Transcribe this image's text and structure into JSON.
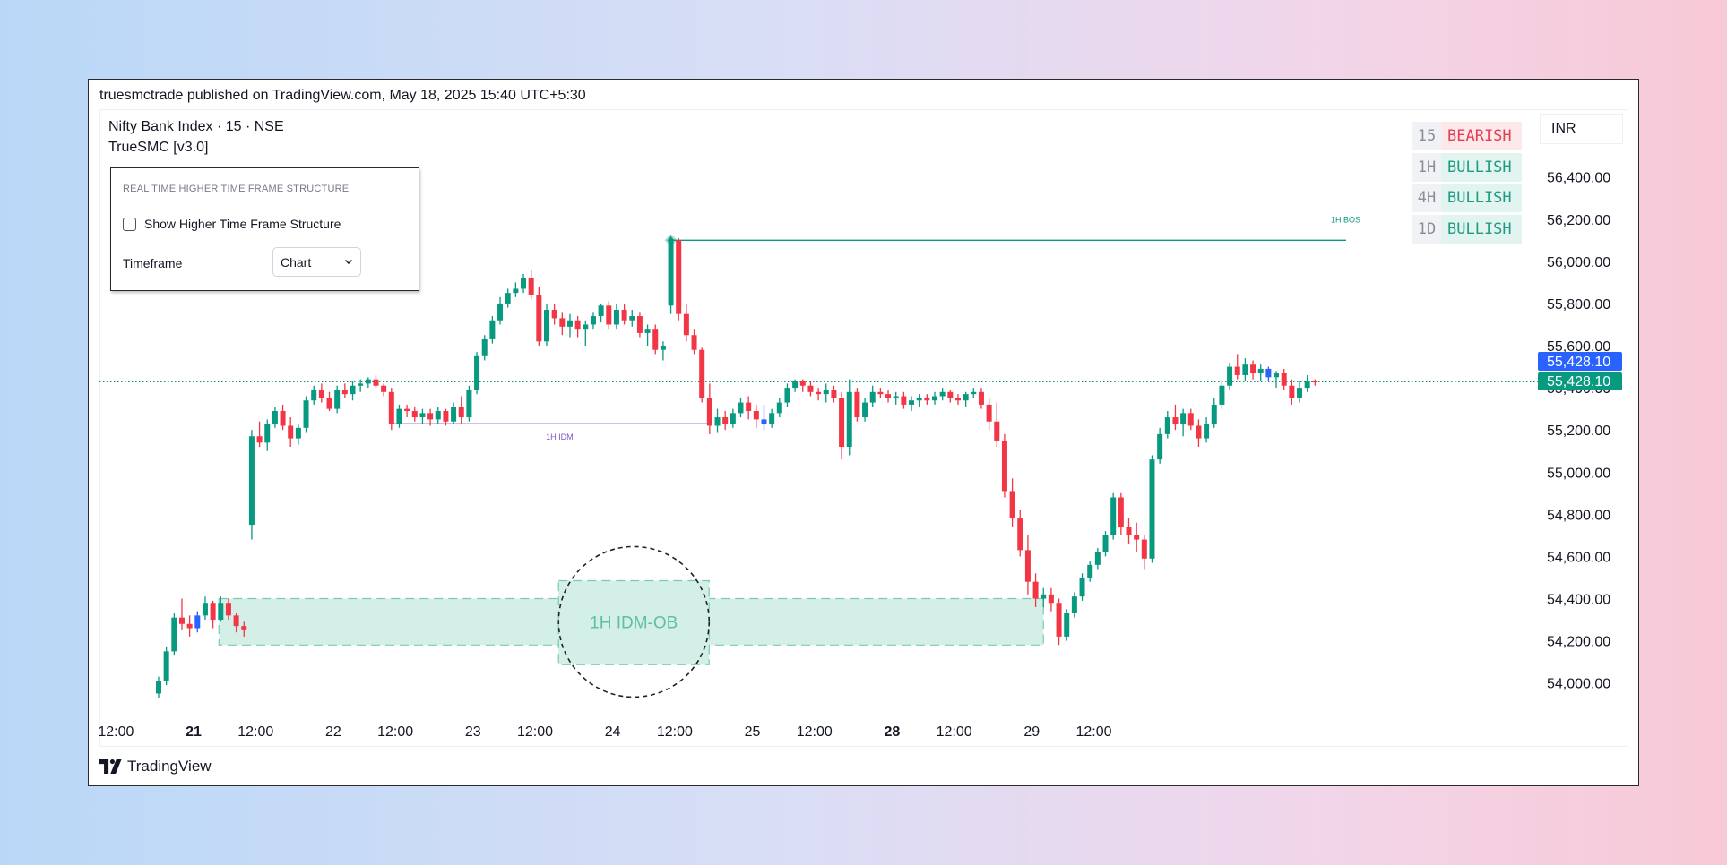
{
  "header": {
    "published": "truesmctrade published on TradingView.com, May 18, 2025 15:40 UTC+5:30",
    "symbol": "Nifty Bank Index · 15 · NSE",
    "indicator": "TrueSMC [v3.0]",
    "currency": "INR"
  },
  "settings_panel": {
    "title": "REAL TIME HIGHER TIME FRAME STRUCTURE",
    "checkbox_label": "Show Higher Time Frame Structure",
    "checkbox_checked": false,
    "timeframe_label": "Timeframe",
    "timeframe_value": "Chart"
  },
  "htf_table": [
    {
      "tf": "15",
      "state": "BEARISH"
    },
    {
      "tf": "1H",
      "state": "BULLISH"
    },
    {
      "tf": "4H",
      "state": "BULLISH"
    },
    {
      "tf": "1D",
      "state": "BULLISH"
    }
  ],
  "colors": {
    "up": "#089981",
    "down": "#f23645",
    "highlight": "#2962ff",
    "bos": "#089981",
    "idm": "#7e57c2",
    "ob_fill": "#d3efe7"
  },
  "footer": {
    "brand": "TradingView"
  },
  "chart_data": {
    "type": "candlestick",
    "ylim": [
      53850,
      56560
    ],
    "y_ticks": [
      54000,
      54200,
      54400,
      54600,
      54800,
      55000,
      55200,
      55400,
      55600,
      55800,
      56000,
      56200,
      56400
    ],
    "y_tick_labels": [
      "54,000.00",
      "54,200.00",
      "54,400.00",
      "54,600.00",
      "54,800.00",
      "55,000.00",
      "55,200.00",
      "55,400.00",
      "55,600.00",
      "55,800.00",
      "56,000.00",
      "56,200.00",
      "56,400.00"
    ],
    "x_tick_labels": [
      {
        "label": "12:00",
        "bar": -5.5,
        "bold": false
      },
      {
        "label": "21",
        "bar": 4.5,
        "bold": true
      },
      {
        "label": "12:00",
        "bar": 12.5,
        "bold": false
      },
      {
        "label": "22",
        "bar": 22.5,
        "bold": false
      },
      {
        "label": "12:00",
        "bar": 30.5,
        "bold": false
      },
      {
        "label": "23",
        "bar": 40.5,
        "bold": false
      },
      {
        "label": "12:00",
        "bar": 48.5,
        "bold": false
      },
      {
        "label": "24",
        "bar": 58.5,
        "bold": false
      },
      {
        "label": "12:00",
        "bar": 66.5,
        "bold": false
      },
      {
        "label": "25",
        "bar": 76.5,
        "bold": false
      },
      {
        "label": "12:00",
        "bar": 84.5,
        "bold": false
      },
      {
        "label": "28",
        "bar": 94.5,
        "bold": true
      },
      {
        "label": "12:00",
        "bar": 102.5,
        "bold": false
      },
      {
        "label": "29",
        "bar": 112.5,
        "bold": false
      },
      {
        "label": "12:00",
        "bar": 120.5,
        "bold": false
      }
    ],
    "last_price_labels": [
      "55,428.10",
      "55,428.10"
    ],
    "last_price": 55428.1,
    "candles": [
      [
        53950,
        54030,
        53930,
        54010
      ],
      [
        54010,
        54170,
        53990,
        54150
      ],
      [
        54150,
        54330,
        54130,
        54310
      ],
      [
        54310,
        54400,
        54250,
        54280
      ],
      [
        54280,
        54320,
        54220,
        54260
      ],
      [
        54260,
        54340,
        54240,
        54320
      ],
      [
        54320,
        54410,
        54300,
        54380
      ],
      [
        54380,
        54390,
        54260,
        54300
      ],
      [
        54300,
        54410,
        54290,
        54380
      ],
      [
        54380,
        54400,
        54300,
        54320
      ],
      [
        54320,
        54330,
        54240,
        54270
      ],
      [
        54270,
        54290,
        54220,
        54250
      ],
      [
        54750,
        55200,
        54680,
        55170
      ],
      [
        55170,
        55240,
        55120,
        55140
      ],
      [
        55140,
        55250,
        55100,
        55230
      ],
      [
        55230,
        55310,
        55210,
        55290
      ],
      [
        55290,
        55320,
        55200,
        55220
      ],
      [
        55220,
        55260,
        55120,
        55160
      ],
      [
        55160,
        55230,
        55130,
        55210
      ],
      [
        55210,
        55360,
        55190,
        55340
      ],
      [
        55340,
        55410,
        55320,
        55390
      ],
      [
        55390,
        55420,
        55330,
        55350
      ],
      [
        55350,
        55380,
        55290,
        55300
      ],
      [
        55300,
        55410,
        55280,
        55390
      ],
      [
        55390,
        55420,
        55350,
        55370
      ],
      [
        55370,
        55430,
        55340,
        55410
      ],
      [
        55410,
        55440,
        55380,
        55420
      ],
      [
        55420,
        55450,
        55400,
        55440
      ],
      [
        55440,
        55460,
        55400,
        55410
      ],
      [
        55410,
        55420,
        55360,
        55380
      ],
      [
        55380,
        55400,
        55200,
        55230
      ],
      [
        55230,
        55320,
        55210,
        55300
      ],
      [
        55300,
        55320,
        55260,
        55290
      ],
      [
        55290,
        55310,
        55240,
        55260
      ],
      [
        55260,
        55300,
        55230,
        55280
      ],
      [
        55280,
        55300,
        55220,
        55250
      ],
      [
        55250,
        55310,
        55230,
        55290
      ],
      [
        55290,
        55300,
        55220,
        55240
      ],
      [
        55240,
        55330,
        55230,
        55310
      ],
      [
        55310,
        55360,
        55230,
        55260
      ],
      [
        55260,
        55410,
        55240,
        55390
      ],
      [
        55390,
        55570,
        55370,
        55550
      ],
      [
        55550,
        55650,
        55530,
        55630
      ],
      [
        55630,
        55740,
        55610,
        55720
      ],
      [
        55720,
        55830,
        55700,
        55800
      ],
      [
        55800,
        55870,
        55780,
        55850
      ],
      [
        55850,
        55900,
        55830,
        55870
      ],
      [
        55870,
        55940,
        55850,
        55920
      ],
      [
        55920,
        55960,
        55820,
        55840
      ],
      [
        55840,
        55880,
        55600,
        55620
      ],
      [
        55620,
        55800,
        55600,
        55770
      ],
      [
        55770,
        55800,
        55700,
        55730
      ],
      [
        55730,
        55760,
        55650,
        55690
      ],
      [
        55690,
        55750,
        55640,
        55720
      ],
      [
        55720,
        55740,
        55640,
        55680
      ],
      [
        55680,
        55720,
        55600,
        55700
      ],
      [
        55700,
        55760,
        55680,
        55740
      ],
      [
        55740,
        55800,
        55710,
        55790
      ],
      [
        55790,
        55810,
        55680,
        55700
      ],
      [
        55700,
        55800,
        55680,
        55770
      ],
      [
        55770,
        55800,
        55700,
        55720
      ],
      [
        55720,
        55770,
        55690,
        55740
      ],
      [
        55740,
        55760,
        55640,
        55660
      ],
      [
        55660,
        55700,
        55600,
        55680
      ],
      [
        55680,
        55700,
        55560,
        55580
      ],
      [
        55580,
        55620,
        55530,
        55600
      ],
      [
        55790,
        56120,
        55750,
        56100
      ],
      [
        56100,
        56110,
        55720,
        55750
      ],
      [
        55750,
        55800,
        55620,
        55650
      ],
      [
        55650,
        55680,
        55560,
        55580
      ],
      [
        55580,
        55590,
        55330,
        55350
      ],
      [
        55350,
        55420,
        55180,
        55220
      ],
      [
        55220,
        55300,
        55190,
        55260
      ],
      [
        55260,
        55290,
        55200,
        55230
      ],
      [
        55230,
        55300,
        55210,
        55280
      ],
      [
        55280,
        55350,
        55260,
        55330
      ],
      [
        55330,
        55360,
        55250,
        55290
      ],
      [
        55290,
        55320,
        55210,
        55250
      ],
      [
        55250,
        55320,
        55200,
        55230
      ],
      [
        55230,
        55300,
        55210,
        55280
      ],
      [
        55280,
        55350,
        55260,
        55330
      ],
      [
        55330,
        55420,
        55310,
        55400
      ],
      [
        55400,
        55440,
        55380,
        55430
      ],
      [
        55430,
        55440,
        55380,
        55410
      ],
      [
        55410,
        55430,
        55360,
        55380
      ],
      [
        55380,
        55400,
        55340,
        55370
      ],
      [
        55370,
        55420,
        55330,
        55390
      ],
      [
        55390,
        55410,
        55330,
        55350
      ],
      [
        55350,
        55380,
        55060,
        55120
      ],
      [
        55120,
        55440,
        55080,
        55380
      ],
      [
        55380,
        55400,
        55240,
        55260
      ],
      [
        55260,
        55350,
        55240,
        55330
      ],
      [
        55330,
        55410,
        55310,
        55380
      ],
      [
        55380,
        55400,
        55350,
        55370
      ],
      [
        55370,
        55390,
        55330,
        55350
      ],
      [
        55350,
        55380,
        55320,
        55360
      ],
      [
        55360,
        55380,
        55300,
        55320
      ],
      [
        55320,
        55360,
        55290,
        55340
      ],
      [
        55340,
        55370,
        55310,
        55350
      ],
      [
        55350,
        55370,
        55320,
        55340
      ],
      [
        55340,
        55380,
        55320,
        55360
      ],
      [
        55360,
        55400,
        55340,
        55380
      ],
      [
        55380,
        55390,
        55330,
        55350
      ],
      [
        55350,
        55370,
        55320,
        55340
      ],
      [
        55340,
        55380,
        55310,
        55370
      ],
      [
        55370,
        55400,
        55350,
        55380
      ],
      [
        55380,
        55400,
        55300,
        55320
      ],
      [
        55320,
        55350,
        55200,
        55240
      ],
      [
        55240,
        55330,
        55120,
        55150
      ],
      [
        55150,
        55180,
        54880,
        54910
      ],
      [
        54910,
        54970,
        54740,
        54780
      ],
      [
        54780,
        54820,
        54600,
        54630
      ],
      [
        54630,
        54700,
        54420,
        54480
      ],
      [
        54480,
        54520,
        54360,
        54400
      ],
      [
        54400,
        54450,
        54360,
        54420
      ],
      [
        54420,
        54450,
        54340,
        54380
      ],
      [
        54380,
        54400,
        54180,
        54220
      ],
      [
        54220,
        54350,
        54200,
        54330
      ],
      [
        54330,
        54430,
        54310,
        54410
      ],
      [
        54410,
        54520,
        54390,
        54500
      ],
      [
        54500,
        54580,
        54480,
        54560
      ],
      [
        54560,
        54640,
        54540,
        54620
      ],
      [
        54620,
        54720,
        54600,
        54700
      ],
      [
        54700,
        54900,
        54680,
        54880
      ],
      [
        54880,
        54900,
        54700,
        54740
      ],
      [
        54740,
        54780,
        54660,
        54700
      ],
      [
        54700,
        54760,
        54620,
        54680
      ],
      [
        54680,
        54700,
        54540,
        54590
      ],
      [
        54590,
        55080,
        54570,
        55060
      ],
      [
        55060,
        55210,
        55040,
        55180
      ],
      [
        55180,
        55290,
        55160,
        55260
      ],
      [
        55260,
        55320,
        55200,
        55230
      ],
      [
        55230,
        55300,
        55170,
        55280
      ],
      [
        55280,
        55300,
        55200,
        55220
      ],
      [
        55220,
        55250,
        55120,
        55160
      ],
      [
        55160,
        55260,
        55140,
        55230
      ],
      [
        55230,
        55350,
        55210,
        55320
      ],
      [
        55320,
        55430,
        55300,
        55410
      ],
      [
        55410,
        55520,
        55390,
        55500
      ],
      [
        55500,
        55560,
        55440,
        55460
      ],
      [
        55460,
        55540,
        55430,
        55510
      ],
      [
        55510,
        55530,
        55440,
        55470
      ],
      [
        55470,
        55510,
        55430,
        55490
      ],
      [
        55490,
        55500,
        55430,
        55450
      ],
      [
        55450,
        55480,
        55400,
        55470
      ],
      [
        55470,
        55490,
        55390,
        55410
      ],
      [
        55410,
        55440,
        55320,
        55350
      ],
      [
        55350,
        55430,
        55330,
        55400
      ],
      [
        55400,
        55460,
        55380,
        55430
      ],
      [
        55430,
        55440,
        55410,
        55428
      ]
    ],
    "highlight_bars": [
      5,
      78,
      143,
      150
    ],
    "overlays": {
      "bos": {
        "label": "1H BOS",
        "price": 56100,
        "from_bar": 66,
        "to_bar": 153
      },
      "idm": {
        "label": "1H IDM",
        "price": 55230,
        "from_bar": 31,
        "to_bar": 70
      },
      "order_block": {
        "label": "1H IDM-OB",
        "top": 54400,
        "bottom": 54180,
        "from_bar": 8,
        "to_bar": 114
      }
    }
  }
}
